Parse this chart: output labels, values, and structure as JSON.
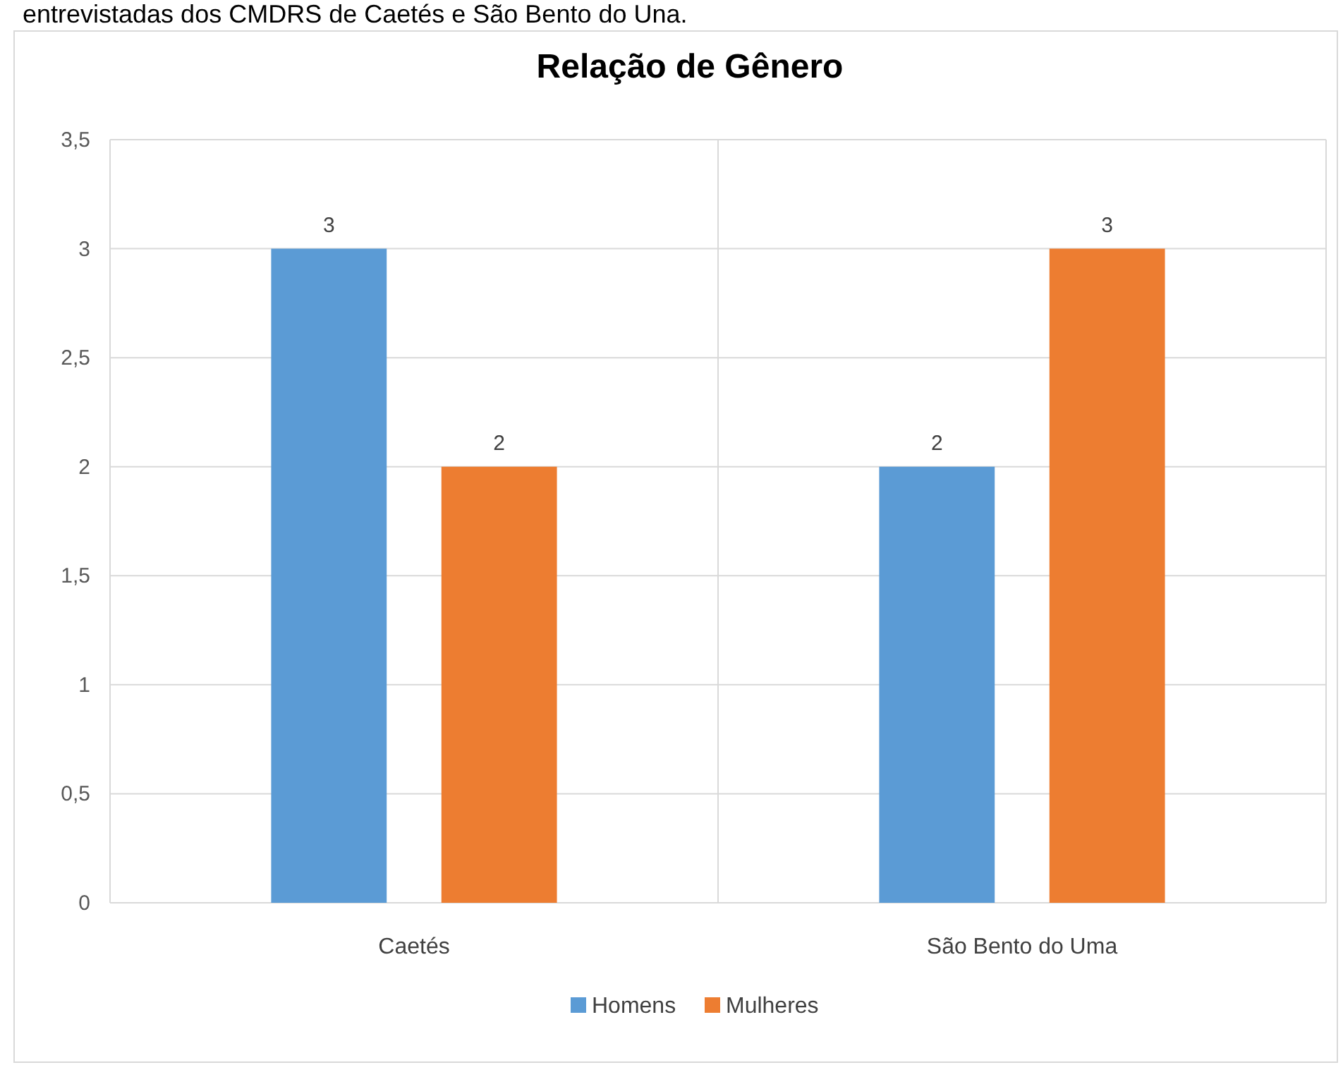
{
  "chart_data": {
    "type": "bar",
    "title": "Relação de Gênero",
    "annotations": [
      "entrevistadas dos CMDRS de Caetés e São Bento do Una."
    ],
    "categories": [
      "Caetés",
      "São Bento do Uma"
    ],
    "series": [
      {
        "name": "Homens",
        "color": "#5b9bd5",
        "values": [
          3,
          2
        ]
      },
      {
        "name": "Mulheres",
        "color": "#ed7d31",
        "values": [
          2,
          3
        ]
      }
    ],
    "ylim": [
      0,
      3.5
    ],
    "yticks": [
      {
        "value": 0,
        "label": "0"
      },
      {
        "value": 0.5,
        "label": "0,5"
      },
      {
        "value": 1,
        "label": "1"
      },
      {
        "value": 1.5,
        "label": "1,5"
      },
      {
        "value": 2,
        "label": "2"
      },
      {
        "value": 2.5,
        "label": "2,5"
      },
      {
        "value": 3,
        "label": "3"
      },
      {
        "value": 3.5,
        "label": "3,5"
      }
    ],
    "grid": true,
    "data_labels": true,
    "legend": "bottom"
  }
}
